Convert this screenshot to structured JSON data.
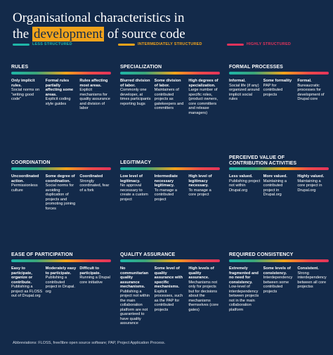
{
  "title": {
    "line1": "Organisational characteristics in",
    "line2_pre": "the",
    "line2_highlight": "development",
    "line2_post": "of source code"
  },
  "legend": [
    {
      "label": "LESS STRUCTURED",
      "color": "#1fb6a8"
    },
    {
      "label": "INTERMEDIATELY STRUCTURED",
      "color": "#f2a31b"
    },
    {
      "label": "HIGHLY STRUCTURED",
      "color": "#e2335b"
    }
  ],
  "sections": [
    {
      "title": "RULES",
      "cells": [
        {
          "head": "Only implicit rules.",
          "body": "Social norms on “writing good code”"
        },
        {
          "head": "Formal rules partially affecting some areas.",
          "body": "Explicit coding style guides"
        },
        {
          "head": "Rules affecting most areas.",
          "body": "Explicit mechanisms for quality assurance and division of labor"
        }
      ]
    },
    {
      "title": "SPECIALIZATION",
      "cells": [
        {
          "head": "Blurred division of labor.",
          "body": "Commonly one developer, at times participants reporting bugs"
        },
        {
          "head": "Some division of labor.",
          "body": "Maintainers of contributed projects as gatekeepers and committers"
        },
        {
          "head": "High degrees of specialization.",
          "body": "Large number of specific roles, (product owners, core committers and release managers)"
        }
      ]
    },
    {
      "title": "FORMAL PROCESSES",
      "cells": [
        {
          "head": "Informal.",
          "body": "Social life (if any) organized around implicit social rules"
        },
        {
          "head": "Some formality",
          "body": "PAP for contributed projects"
        },
        {
          "head": "Formal.",
          "body": "Bureaucratic processes for development of Drupal core"
        }
      ]
    },
    {
      "title": "COORDINATION",
      "cells": [
        {
          "head": "Uncoordinated action.",
          "body": "Permissionless culture"
        },
        {
          "head": "Some degree of coordination.",
          "body": "Social norms for avoiding duplication of projects and promoting joining forces"
        },
        {
          "head": "Coordinated",
          "body": "Strongly coordinated, fear of a fork"
        }
      ]
    },
    {
      "title": "LEGITIMACY",
      "cells": [
        {
          "head": "Low level of legitimacy.",
          "body": "No approval necessary to create a custom project"
        },
        {
          "head": "Intermediate necessary legitimacy.",
          "body": "To manage a contributed project"
        },
        {
          "head": "High level of legitimacy necessary.",
          "body": "To manage a core project"
        }
      ]
    },
    {
      "title": "PERCEIVED VALUE OF\nCONTRIBUTION ACTIVITIES",
      "cells": [
        {
          "head": "Less valued.",
          "body": "Publishing project not within Drupal.org"
        },
        {
          "head": "More valued.",
          "body": "Maintaining a contributed project in Drupal.org"
        },
        {
          "head": "Highly valued.",
          "body": "Maintaining a core project in Drupal.org"
        }
      ]
    },
    {
      "title": "EASE OF PARTICIPATION",
      "cells": [
        {
          "head": "Easy to participate, organize or contribute.",
          "body": "Publishing a project as FLOSS out of Drupal.org"
        },
        {
          "head": "Moderately easy to participate.",
          "body": "Publishing a contributed project in Drupal. org"
        },
        {
          "head": "Difficult to participate.",
          "body": "Running a Drupal core initiative"
        }
      ]
    },
    {
      "title": "QUALITY ASSURANCE",
      "cells": [
        {
          "head": "No communitarian quality assurance mechanisms.",
          "body": "Publishing a project not within the main collaboration platform are not guaranteed to have quality assurance"
        },
        {
          "head": "Some level of quality assurance with specific mechanisms.",
          "body": "Explicit processes, such as the PAP for contributed projects"
        },
        {
          "head": "High levels of quality assurance.",
          "body": "Mechanisms not only for projects but for decisions about the mechanisms themselves (core gates)"
        }
      ]
    },
    {
      "title": "REQUIRED CONSISTENCY",
      "cells": [
        {
          "head": "Extremely fragmented and no need for consistency.",
          "body": "Low-level of interdependency between projects not in the main collaboration platform"
        },
        {
          "head": "Some levels of consistency.",
          "body": "Interdependency between some contributed projects"
        },
        {
          "head": "Consistent.",
          "body": "Strong interdependency between all core projectss"
        }
      ]
    }
  ],
  "footer": "Abbreviations: FLOSS, free/libre open source software; PAP, Project Application Process."
}
